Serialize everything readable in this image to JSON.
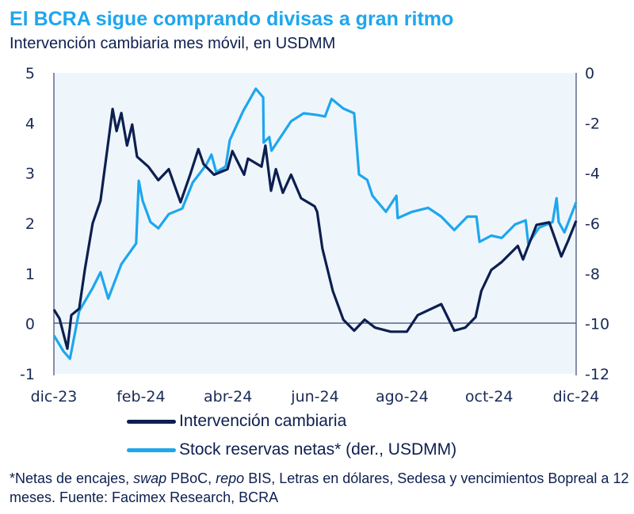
{
  "chart_data": {
    "type": "line",
    "title": "El BCRA sigue comprando divisas a gran ritmo",
    "subtitle": "Intervención cambiaria mes móvil, en USDMM",
    "x_unit": "months since dic-23",
    "xlim": [
      0,
      12
    ],
    "x_ticks": [
      0,
      2,
      4,
      6,
      8,
      10,
      12
    ],
    "x_tick_labels": [
      "dic-23",
      "feb-24",
      "abr-24",
      "jun-24",
      "ago-24",
      "oct-24",
      "dic-24"
    ],
    "ylim_left": [
      -1,
      5
    ],
    "y_ticks_left": [
      "5",
      "4",
      "3",
      "2",
      "1",
      "0",
      "-1"
    ],
    "ylim_right": [
      -12,
      0
    ],
    "y_ticks_right": [
      "0",
      "-2",
      "-4",
      "-6",
      "-8",
      "-10",
      "-12"
    ],
    "zero_line": true,
    "legend_position": "bottom",
    "series": [
      {
        "name": "Intervención cambiaria",
        "axis": "left",
        "color": "#0d1f4f",
        "x": [
          0,
          0.13,
          0.31,
          0.4,
          0.58,
          0.71,
          0.89,
          1.07,
          1.35,
          1.44,
          1.55,
          1.68,
          1.8,
          1.91,
          2.17,
          2.4,
          2.64,
          2.91,
          3.13,
          3.32,
          3.44,
          3.68,
          3.99,
          4.1,
          4.37,
          4.46,
          4.77,
          4.86,
          4.99,
          5.1,
          5.26,
          5.45,
          5.68,
          5.99,
          6.05,
          6.17,
          6.41,
          6.65,
          6.9,
          7.14,
          7.38,
          7.74,
          8.11,
          8.36,
          8.9,
          9.2,
          9.45,
          9.69,
          9.82,
          10.05,
          10.29,
          10.66,
          10.78,
          10.9,
          11.09,
          11.38,
          11.66,
          11.82,
          12
        ],
        "y": [
          0.28,
          0.1,
          -0.5,
          0.17,
          0.3,
          1.07,
          2.0,
          2.45,
          4.28,
          3.84,
          4.2,
          3.55,
          3.97,
          3.33,
          3.13,
          2.86,
          3.08,
          2.42,
          2.97,
          3.48,
          3.18,
          2.97,
          3.08,
          3.44,
          2.97,
          3.29,
          3.13,
          3.55,
          2.65,
          3.08,
          2.61,
          2.97,
          2.5,
          2.34,
          2.23,
          1.5,
          0.65,
          0.08,
          -0.14,
          0.08,
          -0.08,
          -0.16,
          -0.16,
          0.17,
          0.39,
          -0.14,
          -0.08,
          0.13,
          0.65,
          1.07,
          1.23,
          1.55,
          1.28,
          1.55,
          1.97,
          2.02,
          1.34,
          1.66,
          2.05
        ]
      },
      {
        "name": "Stock reservas netas* (der., USDMM)",
        "axis": "right",
        "color": "#1ea6ee",
        "x": [
          0,
          0.22,
          0.37,
          0.58,
          0.89,
          1.07,
          1.25,
          1.55,
          1.89,
          1.95,
          2.04,
          2.22,
          2.4,
          2.64,
          2.95,
          3.19,
          3.5,
          3.62,
          3.73,
          3.95,
          4.04,
          4.35,
          4.64,
          4.81,
          4.82,
          4.95,
          5.0,
          5.45,
          5.74,
          6.05,
          6.23,
          6.38,
          6.65,
          6.9,
          7.01,
          7.2,
          7.32,
          7.63,
          7.87,
          7.9,
          8.23,
          8.6,
          8.9,
          9.2,
          9.5,
          9.71,
          9.78,
          10.05,
          10.29,
          10.6,
          10.84,
          10.9,
          11.15,
          11.46,
          11.55,
          11.6,
          11.73,
          12
        ],
        "y": [
          -10.47,
          -11.1,
          -11.4,
          -9.5,
          -8.58,
          -7.95,
          -9.0,
          -7.63,
          -6.8,
          -4.3,
          -5.1,
          -5.95,
          -6.2,
          -5.63,
          -5.41,
          -4.37,
          -3.67,
          -3.26,
          -3.96,
          -3.73,
          -2.69,
          -1.52,
          -0.63,
          -0.98,
          -2.78,
          -2.56,
          -3.1,
          -1.93,
          -1.61,
          -1.68,
          -1.74,
          -1.04,
          -1.42,
          -1.61,
          -4.05,
          -4.27,
          -4.9,
          -5.54,
          -4.9,
          -5.79,
          -5.54,
          -5.38,
          -5.73,
          -6.27,
          -5.73,
          -5.73,
          -6.74,
          -6.49,
          -6.58,
          -6.04,
          -5.88,
          -6.8,
          -6.17,
          -5.95,
          -5.0,
          -5.95,
          -6.36,
          -5.16
        ]
      }
    ],
    "footnote": {
      "parts": [
        {
          "text": "*Netas de encajes, ",
          "italic": false
        },
        {
          "text": "swap",
          "italic": true
        },
        {
          "text": " PBoC, ",
          "italic": false
        },
        {
          "text": "repo",
          "italic": true
        },
        {
          "text": " BIS, Letras en dólares, Sedesa y vencimientos Bopreal a 12 meses. Fuente: Facimex Research, BCRA",
          "italic": false
        }
      ]
    }
  }
}
